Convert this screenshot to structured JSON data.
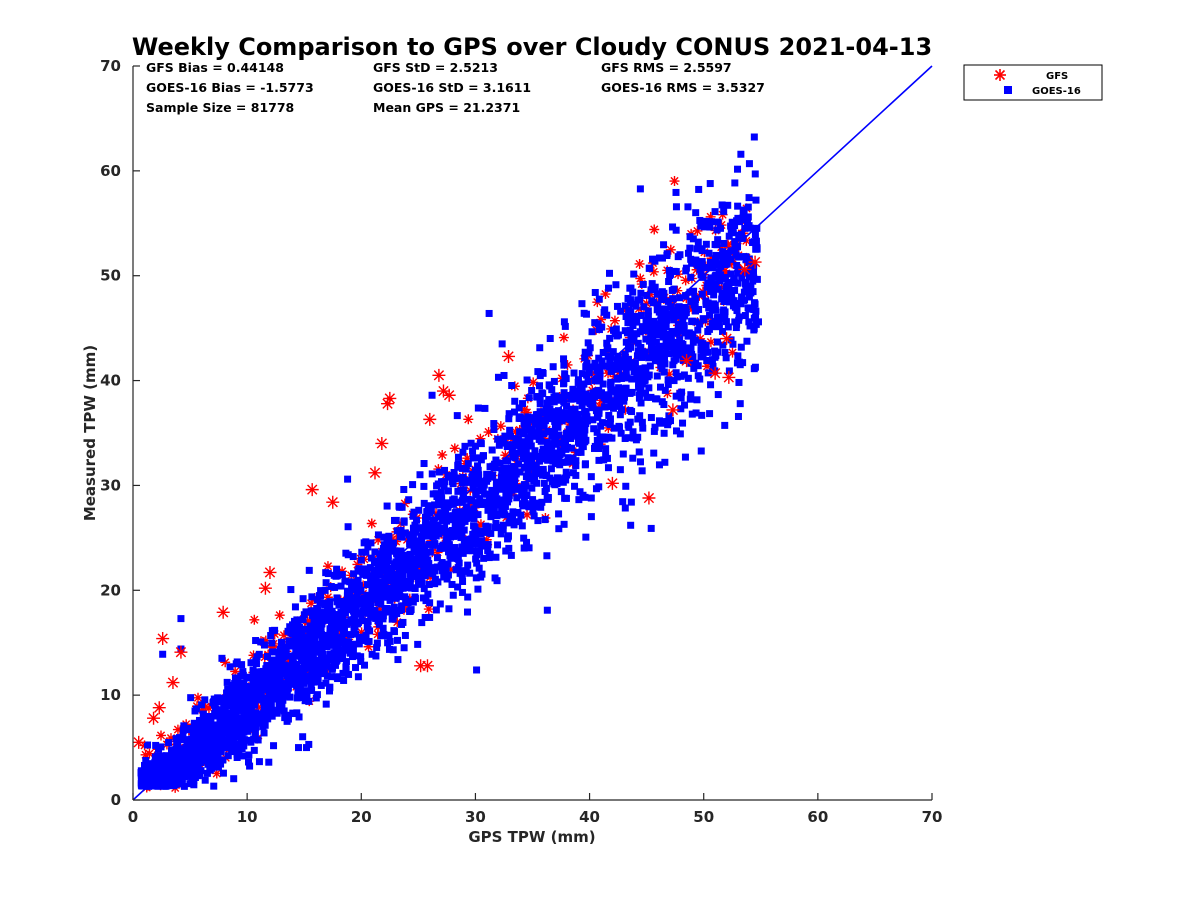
{
  "chart_data": {
    "type": "scatter",
    "title": "Weekly Comparison to GPS over Cloudy CONUS 2021-04-13",
    "xlabel": "GPS TPW (mm)",
    "ylabel": "Measured TPW (mm)",
    "xlim": [
      0,
      70
    ],
    "ylim": [
      0,
      70
    ],
    "xticks": [
      "0",
      "10",
      "20",
      "30",
      "40",
      "50",
      "60",
      "70"
    ],
    "yticks": [
      "0",
      "10",
      "20",
      "30",
      "40",
      "50",
      "60",
      "70"
    ],
    "grid": false,
    "legend_position": "outside top-right",
    "stats": [
      "GFS Bias = 0.44148",
      "GFS StD = 2.5213",
      "GFS RMS = 2.5597",
      "GOES-16 Bias = -1.5773",
      "GOES-16 StD = 3.1611",
      "GOES-16 RMS = 3.5327",
      "Sample Size = 81778",
      "Mean GPS = 21.2371"
    ],
    "reference_line": {
      "name": "1:1",
      "x": [
        0,
        70
      ],
      "y": [
        0,
        70
      ],
      "color": "#0000ff"
    },
    "series": [
      {
        "name": "GFS",
        "marker": "asterisk",
        "color": "#ff0000",
        "outliers": [
          [
            0.5,
            5.5
          ],
          [
            1.8,
            7.8
          ],
          [
            2.3,
            8.8
          ],
          [
            2.6,
            15.4
          ],
          [
            3.5,
            11.2
          ],
          [
            4.2,
            14.1
          ],
          [
            7.9,
            17.9
          ],
          [
            11.6,
            20.2
          ],
          [
            12.0,
            21.7
          ],
          [
            15.7,
            29.6
          ],
          [
            17.5,
            28.4
          ],
          [
            21.2,
            31.2
          ],
          [
            21.8,
            34.0
          ],
          [
            22.3,
            37.8
          ],
          [
            22.5,
            38.3
          ],
          [
            25.2,
            12.8
          ],
          [
            25.8,
            12.8
          ],
          [
            26.8,
            40.5
          ],
          [
            27.2,
            39.0
          ],
          [
            27.7,
            38.6
          ],
          [
            32.9,
            42.3
          ],
          [
            42.0,
            30.2
          ],
          [
            45.2,
            28.8
          ],
          [
            47.3,
            37.2
          ],
          [
            51.0,
            40.7
          ],
          [
            52.0,
            44.0
          ],
          [
            52.2,
            40.3
          ],
          [
            53.6,
            50.6
          ],
          [
            54.5,
            51.3
          ],
          [
            48.5,
            41.9
          ],
          [
            26.0,
            36.3
          ]
        ]
      },
      {
        "name": "GOES-16",
        "marker": "square",
        "color": "#0000ff",
        "outliers": [
          [
            2.6,
            13.9
          ],
          [
            4.2,
            17.3
          ],
          [
            4.2,
            14.4
          ],
          [
            13.5,
            7.5
          ],
          [
            14.5,
            5.0
          ],
          [
            15.2,
            5.0
          ],
          [
            15.4,
            5.3
          ],
          [
            18.8,
            30.6
          ],
          [
            26.2,
            38.6
          ],
          [
            30.1,
            12.4
          ],
          [
            31.2,
            46.4
          ],
          [
            36.3,
            18.1
          ],
          [
            40.5,
            48.4
          ],
          [
            45.4,
            25.9
          ],
          [
            47.4,
            40.0
          ],
          [
            49.0,
            36.8
          ],
          [
            52.5,
            55.1
          ],
          [
            54.8,
            45.6
          ],
          [
            54.5,
            47.3
          ],
          [
            48.4,
            32.7
          ],
          [
            50.6,
            39.6
          ],
          [
            53.2,
            37.8
          ],
          [
            46.8,
            52.1
          ],
          [
            37.7,
            30.3
          ],
          [
            43.6,
            26.2
          ]
        ]
      }
    ]
  },
  "legend": {
    "items": [
      {
        "label": "GFS",
        "marker": "asterisk",
        "color": "#ff0000"
      },
      {
        "label": "GOES-16",
        "marker": "square",
        "color": "#0000ff"
      }
    ]
  }
}
